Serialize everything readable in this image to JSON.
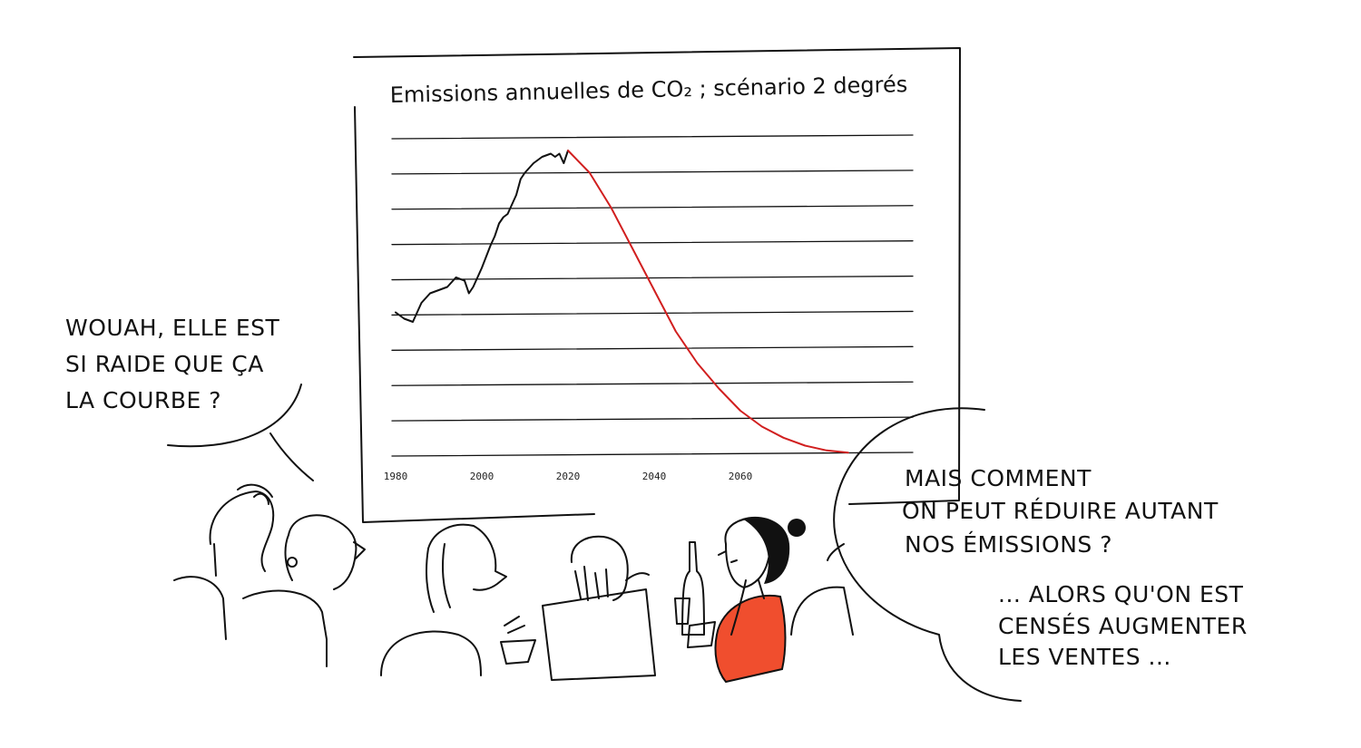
{
  "slide": {
    "title": "Emissions annuelles de CO₂ ; scénario 2 degrés"
  },
  "chart_data": {
    "type": "line",
    "title": "Emissions annuelles de CO₂ ; scénario 2 degrés",
    "xlabel": "",
    "ylabel": "",
    "x_ticks": [
      "1980",
      "2000",
      "2020",
      "2040",
      "2060"
    ],
    "xlim": [
      1980,
      2100
    ],
    "ylim": [
      0,
      10
    ],
    "grid": "horizontal",
    "series": [
      {
        "color": "#111111",
        "x": [
          1980,
          1982,
          1984,
          1986,
          1988,
          1990,
          1992,
          1994,
          1996,
          1997,
          1998,
          2000,
          2002,
          2003,
          2004,
          2005,
          2006,
          2008,
          2009,
          2010,
          2012,
          2014,
          2016,
          2017,
          2018,
          2019,
          2020
        ],
        "y": [
          4.5,
          4.3,
          4.2,
          4.8,
          5.1,
          5.2,
          5.3,
          5.6,
          5.5,
          5.1,
          5.3,
          5.9,
          6.6,
          6.9,
          7.3,
          7.5,
          7.6,
          8.2,
          8.7,
          8.9,
          9.2,
          9.4,
          9.5,
          9.4,
          9.5,
          9.2,
          9.6
        ]
      },
      {
        "color": "#d11f1f",
        "x": [
          2020,
          2025,
          2030,
          2035,
          2040,
          2045,
          2050,
          2055,
          2060,
          2065,
          2070,
          2075,
          2080,
          2085
        ],
        "y": [
          9.6,
          8.9,
          7.8,
          6.5,
          5.2,
          3.9,
          2.9,
          2.1,
          1.4,
          0.9,
          0.55,
          0.3,
          0.15,
          0.08
        ]
      }
    ]
  },
  "bubbles": {
    "left": [
      "WOUAH, ELLE EST",
      "SI RAIDE QUE ÇA",
      "LA COURBE ?"
    ],
    "right_top": [
      "MAIS COMMENT",
      "ON PEUT RÉDUIRE AUTANT",
      "NOS ÉMISSIONS ?"
    ],
    "right_bottom": [
      "... ALORS QU'ON EST",
      "CENSÉS AUGMENTER",
      "LES VENTES ..."
    ]
  },
  "colors": {
    "ink": "#111111",
    "trajectory": "#d11f1f",
    "sweater": "#f04e2e"
  }
}
